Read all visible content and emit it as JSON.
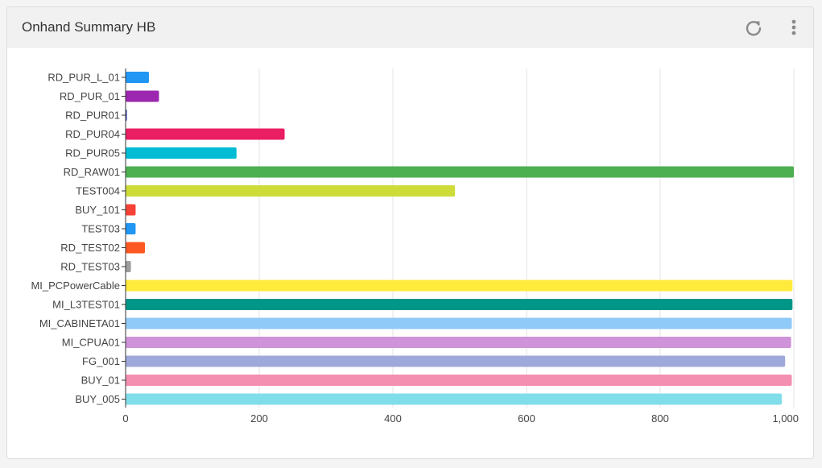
{
  "header": {
    "title": "Onhand Summary HB",
    "refresh_icon": "refresh-icon",
    "menu_icon": "more-vertical-icon"
  },
  "chart_data": {
    "type": "bar",
    "orientation": "horizontal",
    "title": "",
    "xlabel": "",
    "ylabel": "",
    "xlim": [
      0,
      1000
    ],
    "xticks": [
      0,
      200,
      400,
      600,
      800,
      1000
    ],
    "xtick_labels": [
      "0",
      "200",
      "400",
      "600",
      "800",
      "1,000"
    ],
    "grid": true,
    "legend": "none",
    "categories": [
      "RD_PUR_L_01",
      "RD_PUR_01",
      "RD_PUR01",
      "RD_PUR04",
      "RD_PUR05",
      "RD_RAW01",
      "TEST004",
      "BUY_101",
      "TEST03",
      "RD_TEST02",
      "RD_TEST03",
      "MI_PCPowerCable",
      "MI_L3TEST01",
      "MI_CABINETA01",
      "MI_CPUA01",
      "FG_001",
      "BUY_01",
      "BUY_005"
    ],
    "values": [
      35,
      50,
      2,
      238,
      166,
      1000,
      493,
      15,
      15,
      29,
      8,
      998,
      998,
      997,
      996,
      987,
      997,
      982
    ],
    "colors": [
      "#2196f3",
      "#9c27b0",
      "#3f51b5",
      "#e91e63",
      "#00bcd4",
      "#4caf50",
      "#cddc39",
      "#f44336",
      "#2196f3",
      "#ff5722",
      "#9e9e9e",
      "#ffeb3b",
      "#009688",
      "#90caf9",
      "#ce93d8",
      "#9fa8da",
      "#f48fb1",
      "#80deea"
    ]
  }
}
